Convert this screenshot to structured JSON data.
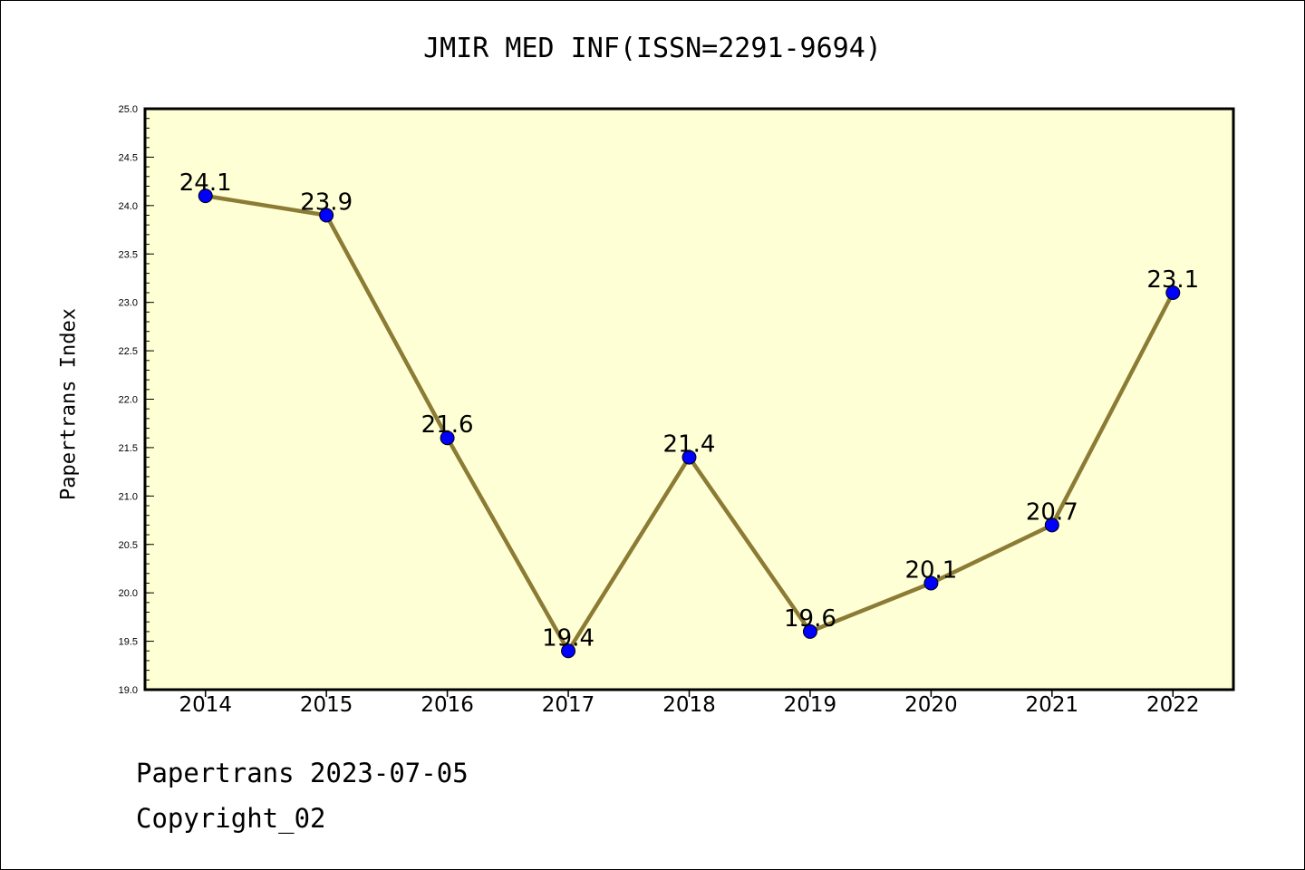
{
  "chart_data": {
    "type": "line",
    "title": "JMIR MED INF(ISSN=2291-9694)",
    "xlabel": "",
    "ylabel": "Papertrans Index",
    "categories": [
      "2014",
      "2015",
      "2016",
      "2017",
      "2018",
      "2019",
      "2020",
      "2021",
      "2022"
    ],
    "values": [
      24.1,
      23.9,
      21.6,
      19.4,
      21.4,
      19.6,
      20.1,
      20.7,
      23.1
    ],
    "data_labels": [
      "24.1",
      "23.9",
      "21.6",
      "19.4",
      "21.4",
      "19.6",
      "20.1",
      "20.7",
      "23.1"
    ],
    "ylim": [
      19.0,
      25.0
    ],
    "yticks": [
      "19.0",
      "19.5",
      "20.0",
      "20.5",
      "21.0",
      "21.5",
      "22.0",
      "22.5",
      "23.0",
      "23.5",
      "24.0",
      "24.5",
      "25.0"
    ],
    "grid": false,
    "legend": "none",
    "colors": {
      "line": "#8B7B35",
      "marker": "#0000FF",
      "plot_background": "#FFFFD5"
    }
  },
  "footer": {
    "date_line": "Papertrans 2023-07-05",
    "copyright_line": "Copyright_02"
  }
}
